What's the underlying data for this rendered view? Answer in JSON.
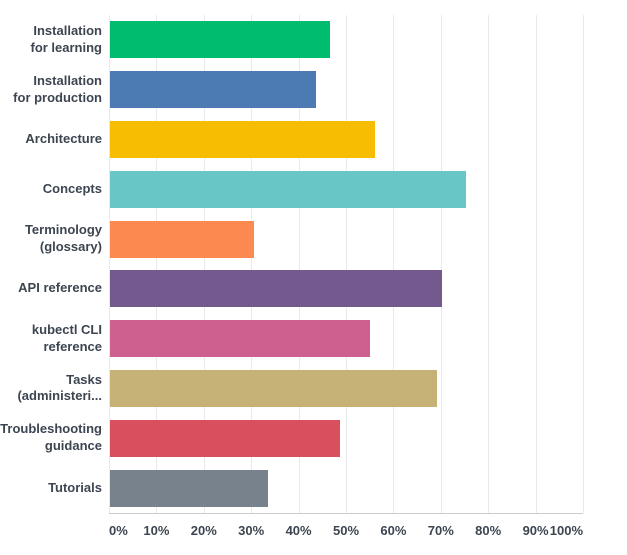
{
  "chart_data": {
    "type": "bar",
    "orientation": "horizontal",
    "title": "",
    "xlabel": "",
    "ylabel": "",
    "xlim": [
      0,
      100
    ],
    "grid": "vertical",
    "legend": false,
    "categories": [
      "Installation\nfor learning",
      "Installation\nfor production",
      "Architecture",
      "Concepts",
      "Terminology\n(glossary)",
      "API reference",
      "kubectl CLI\nreference",
      "Tasks\n(administeri...",
      "Troubleshooting\nguidance",
      "Tutorials"
    ],
    "values": [
      46.5,
      43.5,
      55.9,
      75,
      30.3,
      70,
      54.8,
      68.9,
      48.6,
      33.3
    ],
    "bar_colors": [
      "#00bc6f",
      "#4c7ab3",
      "#f6bd02",
      "#68c6c7",
      "#fc8a50",
      "#74598f",
      "#ce6090",
      "#c6b277",
      "#d8505e",
      "#77828c"
    ],
    "x_ticks": [
      "0%",
      "10%",
      "20%",
      "30%",
      "40%",
      "50%",
      "60%",
      "70%",
      "80%",
      "90%",
      "100%"
    ]
  },
  "style_colors": {
    "text": "#3d4551",
    "gridline": "#e9eaec",
    "axis_line": "#c9cdd2",
    "background": "#ffffff"
  }
}
